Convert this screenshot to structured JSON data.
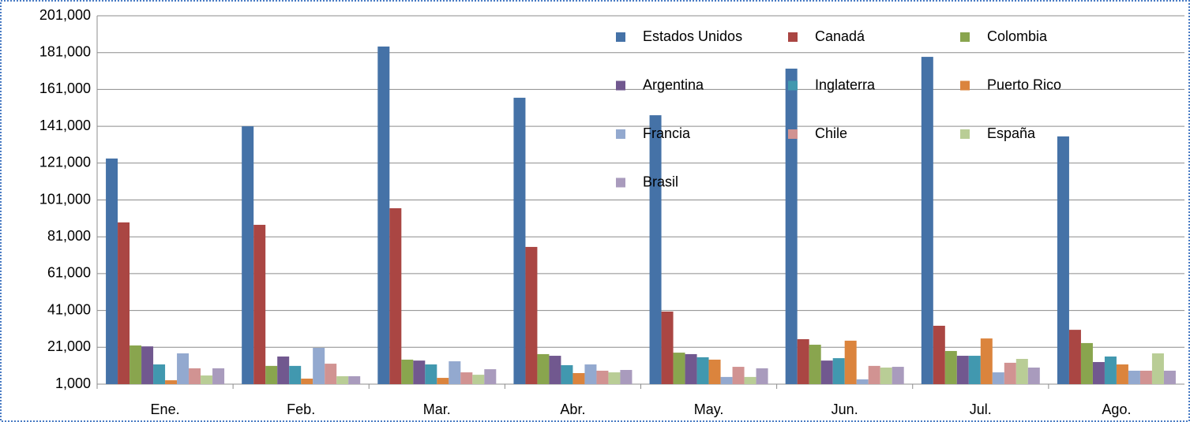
{
  "chart_data": {
    "type": "bar",
    "categories": [
      "Ene.",
      "Feb.",
      "Mar.",
      "Abr.",
      "May.",
      "Jun.",
      "Jul.",
      "Ago."
    ],
    "series": [
      {
        "name": "Estados Unidos",
        "color": "#4572a7",
        "values": [
          123500,
          141000,
          184300,
          156500,
          147000,
          172300,
          178700,
          135500
        ]
      },
      {
        "name": "Canadá",
        "color": "#aa4643",
        "values": [
          88800,
          87500,
          96500,
          75500,
          40400,
          25400,
          32700,
          30500
        ]
      },
      {
        "name": "Colombia",
        "color": "#89a54e",
        "values": [
          22000,
          10900,
          14300,
          17300,
          18100,
          22400,
          19000,
          23300
        ]
      },
      {
        "name": "Argentina",
        "color": "#71588f",
        "values": [
          21500,
          16000,
          13800,
          16400,
          17300,
          13800,
          16400,
          13000
        ]
      },
      {
        "name": "Inglaterra",
        "color": "#4198af",
        "values": [
          11700,
          10900,
          11700,
          11300,
          15600,
          15100,
          16400,
          16000
        ]
      },
      {
        "name": "Puerto  Rico",
        "color": "#db843d",
        "values": [
          3100,
          4000,
          4400,
          7000,
          14300,
          24600,
          25800,
          11700
        ]
      },
      {
        "name": "Francia",
        "color": "#93a9cf",
        "values": [
          17700,
          20700,
          13400,
          11700,
          4900,
          3600,
          7400,
          8300
        ]
      },
      {
        "name": "Chile",
        "color": "#d19392",
        "values": [
          9600,
          12100,
          7400,
          8300,
          10400,
          10900,
          12600,
          8300
        ]
      },
      {
        "name": "España",
        "color": "#b9cd96",
        "values": [
          5700,
          5300,
          6100,
          7400,
          4900,
          10000,
          14700,
          17700
        ]
      },
      {
        "name": "Brasil",
        "color": "#a99bbd",
        "values": [
          9600,
          5300,
          9100,
          8700,
          9600,
          10400,
          10000,
          8300
        ]
      }
    ],
    "ylim": [
      1000,
      201000
    ],
    "yticks": [
      {
        "value": 1000,
        "label": "1,000"
      },
      {
        "value": 21000,
        "label": "21,000"
      },
      {
        "value": 41000,
        "label": "41,000"
      },
      {
        "value": 61000,
        "label": "61,000"
      },
      {
        "value": 81000,
        "label": "81,000"
      },
      {
        "value": 101000,
        "label": "101,000"
      },
      {
        "value": 121000,
        "label": "121,000"
      },
      {
        "value": 141000,
        "label": "141,000"
      },
      {
        "value": 161000,
        "label": "161,000"
      },
      {
        "value": 181000,
        "label": "181,000"
      },
      {
        "value": 201000,
        "label": "201,000"
      }
    ],
    "grid": true,
    "legend": "top-right"
  }
}
